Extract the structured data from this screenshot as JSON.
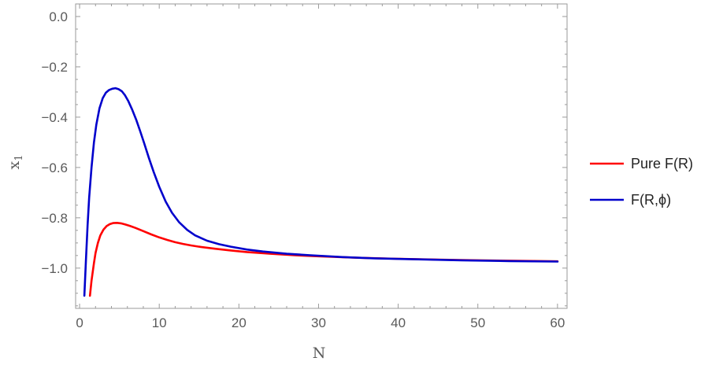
{
  "chart_data": {
    "type": "line",
    "title": "",
    "xlabel": "N",
    "ylabel": "x",
    "ylabel_subscript": "1",
    "xlim": [
      -0.5,
      61.2
    ],
    "ylim": [
      -1.16,
      0.05
    ],
    "xticks": [
      0,
      10,
      20,
      30,
      40,
      50,
      60
    ],
    "xtick_labels": [
      "0",
      "10",
      "20",
      "30",
      "40",
      "50",
      "60"
    ],
    "yticks": [
      0.0,
      -0.2,
      -0.4,
      -0.6,
      -0.8,
      -1.0
    ],
    "ytick_labels": [
      "0.0",
      "−0.2",
      "−0.4",
      "−0.6",
      "−0.8",
      "−1.0"
    ],
    "grid": false,
    "legend_position": "right",
    "series": [
      {
        "name": "Pure F(R)",
        "color": "#ff0000",
        "x": [
          1.3,
          1.5,
          1.8,
          2.0,
          2.3,
          2.6,
          3.0,
          3.4,
          3.8,
          4.2,
          4.7,
          5.2,
          5.7,
          6.3,
          7.0,
          8.0,
          9.0,
          10.0,
          11.0,
          12.0,
          13.0,
          14.0,
          15.0,
          17.0,
          19.0,
          21.0,
          24.0,
          27.0,
          30.0,
          35.0,
          40.0,
          45.0,
          50.0,
          55.0,
          60.0
        ],
        "y": [
          -1.11,
          -1.05,
          -0.98,
          -0.94,
          -0.9,
          -0.87,
          -0.847,
          -0.833,
          -0.825,
          -0.821,
          -0.82,
          -0.822,
          -0.826,
          -0.832,
          -0.84,
          -0.853,
          -0.866,
          -0.878,
          -0.888,
          -0.897,
          -0.904,
          -0.91,
          -0.915,
          -0.923,
          -0.93,
          -0.936,
          -0.943,
          -0.949,
          -0.953,
          -0.959,
          -0.963,
          -0.966,
          -0.969,
          -0.971,
          -0.973
        ]
      },
      {
        "name": "F(R,ϕ)",
        "color": "#0000cc",
        "x": [
          0.6,
          0.8,
          1.0,
          1.2,
          1.5,
          1.8,
          2.1,
          2.5,
          2.9,
          3.3,
          3.7,
          4.1,
          4.5,
          4.9,
          5.3,
          5.7,
          6.1,
          6.6,
          7.1,
          7.6,
          8.1,
          8.7,
          9.3,
          10.0,
          10.8,
          11.6,
          12.5,
          13.5,
          14.5,
          16.0,
          17.5,
          19.0,
          21.0,
          23.0,
          26.0,
          29.0,
          33.0,
          37.0,
          42.0,
          48.0,
          54.0,
          60.0
        ],
        "y": [
          -1.11,
          -0.97,
          -0.83,
          -0.72,
          -0.6,
          -0.5,
          -0.43,
          -0.365,
          -0.325,
          -0.303,
          -0.292,
          -0.287,
          -0.285,
          -0.289,
          -0.297,
          -0.313,
          -0.335,
          -0.37,
          -0.41,
          -0.455,
          -0.503,
          -0.562,
          -0.618,
          -0.677,
          -0.735,
          -0.78,
          -0.818,
          -0.848,
          -0.87,
          -0.891,
          -0.905,
          -0.915,
          -0.926,
          -0.934,
          -0.943,
          -0.949,
          -0.956,
          -0.961,
          -0.965,
          -0.969,
          -0.972,
          -0.974
        ]
      }
    ]
  }
}
